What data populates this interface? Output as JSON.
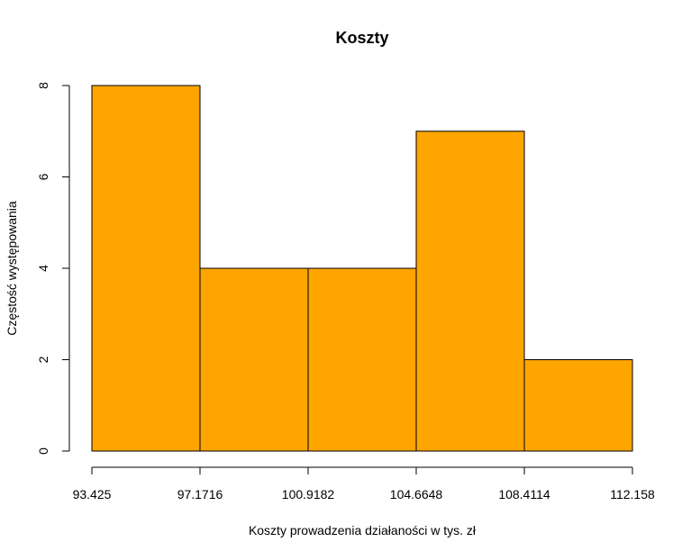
{
  "chart_data": {
    "type": "bar",
    "title": "Koszty",
    "xlabel": "Koszty prowadzenia działaności w tys. zł",
    "ylabel": "Częstość występowania",
    "bin_edges": [
      93.425,
      97.1716,
      100.9182,
      104.6648,
      108.4114,
      112.158
    ],
    "x_tick_labels": [
      "93.425",
      "97.1716",
      "100.9182",
      "104.6648",
      "108.4114",
      "112.158"
    ],
    "values": [
      8,
      4,
      4,
      7,
      2
    ],
    "y_ticks": [
      0,
      2,
      4,
      6,
      8
    ],
    "y_tick_labels": [
      "0",
      "2",
      "4",
      "6",
      "8"
    ],
    "ylim": [
      0,
      8
    ],
    "xlim": [
      93.425,
      112.158
    ],
    "bar_color": "#FFA500",
    "bar_stroke": "#000000",
    "grid": false,
    "legend": "none"
  }
}
